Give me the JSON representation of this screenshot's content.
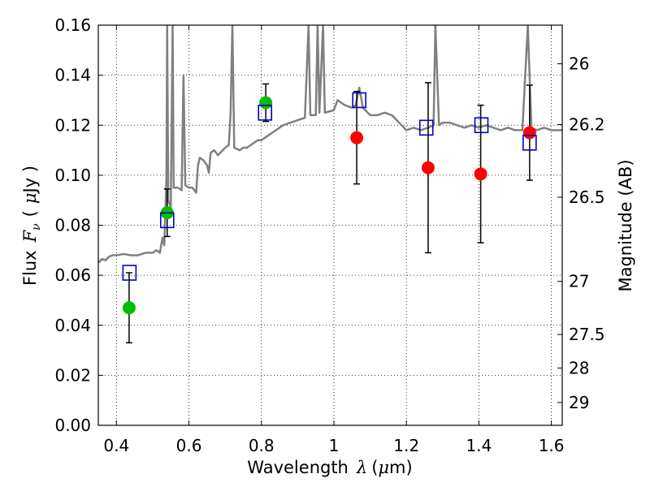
{
  "chart_data": {
    "type": "scatter",
    "xlabel": {
      "prefix": "Wavelength",
      "sym": "λ",
      "unit_pre": "(",
      "unit_mu": "μ",
      "unit_post": "m)"
    },
    "ylabel": {
      "prefix": "Flux",
      "sym": "F",
      "sub": "ν",
      "unit_pre": "(",
      "unit_mu": "μ",
      "unit_post": "Jy )"
    },
    "y2label": "Magnitude (AB)",
    "xlim": [
      0.35,
      1.63
    ],
    "ylim": [
      0.0,
      0.16
    ],
    "grid": true,
    "x_ticks": [
      {
        "value": 0.4,
        "label": "0.4"
      },
      {
        "value": 0.6,
        "label": "0.6"
      },
      {
        "value": 0.8,
        "label": "0.8"
      },
      {
        "value": 1.0,
        "label": "1"
      },
      {
        "value": 1.2,
        "label": "1.2"
      },
      {
        "value": 1.4,
        "label": "1.4"
      },
      {
        "value": 1.6,
        "label": "1.6"
      }
    ],
    "y_ticks": [
      {
        "value": 0.0,
        "label": "0.00"
      },
      {
        "value": 0.02,
        "label": "0.02"
      },
      {
        "value": 0.04,
        "label": "0.04"
      },
      {
        "value": 0.06,
        "label": "0.06"
      },
      {
        "value": 0.08,
        "label": "0.08"
      },
      {
        "value": 0.1,
        "label": "0.10"
      },
      {
        "value": 0.12,
        "label": "0.12"
      },
      {
        "value": 0.14,
        "label": "0.14"
      },
      {
        "value": 0.16,
        "label": "0.16"
      }
    ],
    "y2_ticks": [
      {
        "value": 26.0,
        "label": "26"
      },
      {
        "value": 26.2,
        "label": "26.2"
      },
      {
        "value": 26.5,
        "label": "26.5"
      },
      {
        "value": 27.0,
        "label": "27"
      },
      {
        "value": 27.5,
        "label": "27.5"
      },
      {
        "value": 28.0,
        "label": "28"
      },
      {
        "value": 29.0,
        "label": "29"
      }
    ],
    "series": [
      {
        "marker": "circle",
        "color": "#00bf00",
        "points": [
          {
            "x": 0.435,
            "y": 0.047,
            "err": 0.014
          },
          {
            "x": 0.54,
            "y": 0.085,
            "err": 0.0095
          },
          {
            "x": 0.812,
            "y": 0.129,
            "err": 0.0075
          }
        ]
      },
      {
        "marker": "circle",
        "color": "#ff0000",
        "points": [
          {
            "x": 1.063,
            "y": 0.115,
            "err": 0.0185
          },
          {
            "x": 1.26,
            "y": 0.103,
            "err": 0.034
          },
          {
            "x": 1.405,
            "y": 0.1005,
            "err": 0.0275
          },
          {
            "x": 1.54,
            "y": 0.117,
            "err": 0.019
          }
        ]
      },
      {
        "marker": "open-square",
        "color": "#0000cc",
        "points": [
          {
            "x": 0.436,
            "y": 0.061
          },
          {
            "x": 0.54,
            "y": 0.082
          },
          {
            "x": 0.81,
            "y": 0.125
          },
          {
            "x": 1.07,
            "y": 0.13
          },
          {
            "x": 1.255,
            "y": 0.119
          },
          {
            "x": 1.407,
            "y": 0.12
          },
          {
            "x": 1.54,
            "y": 0.113
          }
        ]
      }
    ],
    "model_spectrum": {
      "color": "#808080",
      "points": [
        [
          0.35,
          0.065
        ],
        [
          0.36,
          0.0665
        ],
        [
          0.37,
          0.066
        ],
        [
          0.38,
          0.0675
        ],
        [
          0.39,
          0.068
        ],
        [
          0.4,
          0.068
        ],
        [
          0.42,
          0.0685
        ],
        [
          0.44,
          0.068
        ],
        [
          0.46,
          0.068
        ],
        [
          0.48,
          0.069
        ],
        [
          0.5,
          0.069
        ],
        [
          0.51,
          0.07
        ],
        [
          0.52,
          0.069
        ],
        [
          0.527,
          0.075
        ],
        [
          0.532,
          0.072
        ],
        [
          0.535,
          0.085
        ],
        [
          0.538,
          0.1
        ],
        [
          0.54,
          0.16
        ],
        [
          0.543,
          0.09
        ],
        [
          0.55,
          0.087
        ],
        [
          0.555,
          0.16
        ],
        [
          0.558,
          0.095
        ],
        [
          0.57,
          0.095
        ],
        [
          0.58,
          0.094
        ],
        [
          0.585,
          0.14
        ],
        [
          0.59,
          0.096
        ],
        [
          0.6,
          0.095
        ],
        [
          0.61,
          0.095
        ],
        [
          0.62,
          0.093
        ],
        [
          0.625,
          0.104
        ],
        [
          0.63,
          0.107
        ],
        [
          0.64,
          0.106
        ],
        [
          0.65,
          0.104
        ],
        [
          0.655,
          0.101
        ],
        [
          0.66,
          0.109
        ],
        [
          0.67,
          0.11
        ],
        [
          0.68,
          0.108
        ],
        [
          0.7,
          0.111
        ],
        [
          0.71,
          0.112
        ],
        [
          0.715,
          0.125
        ],
        [
          0.72,
          0.16
        ],
        [
          0.725,
          0.111
        ],
        [
          0.74,
          0.11
        ],
        [
          0.75,
          0.111
        ],
        [
          0.76,
          0.111
        ],
        [
          0.77,
          0.112
        ],
        [
          0.78,
          0.113
        ],
        [
          0.79,
          0.114
        ],
        [
          0.8,
          0.114
        ],
        [
          0.81,
          0.115
        ],
        [
          0.82,
          0.116
        ],
        [
          0.83,
          0.117
        ],
        [
          0.84,
          0.118
        ],
        [
          0.85,
          0.119
        ],
        [
          0.86,
          0.12
        ],
        [
          0.87,
          0.1205
        ],
        [
          0.88,
          0.121
        ],
        [
          0.9,
          0.122
        ],
        [
          0.92,
          0.123
        ],
        [
          0.93,
          0.16
        ],
        [
          0.935,
          0.124
        ],
        [
          0.95,
          0.124
        ],
        [
          0.955,
          0.16
        ],
        [
          0.96,
          0.125
        ],
        [
          0.97,
          0.16
        ],
        [
          0.975,
          0.125
        ],
        [
          1.0,
          0.126
        ],
        [
          1.01,
          0.13
        ],
        [
          1.02,
          0.129
        ],
        [
          1.03,
          0.128
        ],
        [
          1.05,
          0.127
        ],
        [
          1.06,
          0.128
        ],
        [
          1.07,
          0.135
        ],
        [
          1.08,
          0.127
        ],
        [
          1.1,
          0.124
        ],
        [
          1.12,
          0.124
        ],
        [
          1.14,
          0.125
        ],
        [
          1.16,
          0.124
        ],
        [
          1.18,
          0.121
        ],
        [
          1.2,
          0.118
        ],
        [
          1.22,
          0.119
        ],
        [
          1.24,
          0.118
        ],
        [
          1.26,
          0.119
        ],
        [
          1.275,
          0.12
        ],
        [
          1.28,
          0.16
        ],
        [
          1.29,
          0.12
        ],
        [
          1.3,
          0.121
        ],
        [
          1.32,
          0.121
        ],
        [
          1.34,
          0.12
        ],
        [
          1.36,
          0.119
        ],
        [
          1.38,
          0.12
        ],
        [
          1.4,
          0.119
        ],
        [
          1.42,
          0.12
        ],
        [
          1.44,
          0.119
        ],
        [
          1.46,
          0.118
        ],
        [
          1.48,
          0.119
        ],
        [
          1.5,
          0.118
        ],
        [
          1.52,
          0.118
        ],
        [
          1.535,
          0.16
        ],
        [
          1.545,
          0.119
        ],
        [
          1.56,
          0.118
        ],
        [
          1.58,
          0.119
        ],
        [
          1.6,
          0.118
        ],
        [
          1.62,
          0.118
        ],
        [
          1.63,
          0.118
        ]
      ]
    }
  }
}
